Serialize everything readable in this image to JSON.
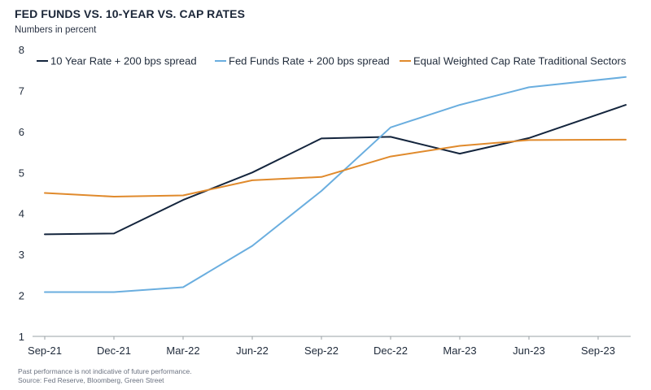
{
  "chart_data": {
    "type": "line",
    "title": "FED FUNDS VS. 10-YEAR VS. CAP RATES",
    "subtitle": "Numbers in percent",
    "xlabel": "",
    "ylabel": "",
    "ylim": [
      1,
      8
    ],
    "yticks": [
      1,
      2,
      3,
      4,
      5,
      6,
      7,
      8
    ],
    "grid": false,
    "legend_position": "top",
    "categories": [
      "Sep-21",
      "Dec-21",
      "Mar-22",
      "Jun-22",
      "Sep-22",
      "Dec-22",
      "Mar-23",
      "Jun-23",
      "Sep-23"
    ],
    "series": [
      {
        "name": "10 Year Rate + 200 bps spread",
        "color": "#14253d",
        "x": [
          0,
          1,
          2,
          3,
          4,
          5,
          6,
          7,
          8.4
        ],
        "values": [
          3.49,
          3.51,
          4.33,
          5.0,
          5.83,
          5.87,
          5.46,
          5.84,
          6.65
        ]
      },
      {
        "name": "Fed Funds Rate + 200 bps spread",
        "color": "#6aaedf",
        "x": [
          0,
          1,
          2,
          3,
          4,
          5,
          6,
          7,
          8.4
        ],
        "values": [
          2.08,
          2.08,
          2.2,
          3.21,
          4.55,
          6.1,
          6.65,
          7.08,
          7.33
        ]
      },
      {
        "name": "Equal Weighted Cap Rate Traditional Sectors",
        "color": "#e08a2c",
        "x": [
          0,
          1,
          2,
          3,
          4,
          5,
          6,
          7,
          8.4
        ],
        "values": [
          4.5,
          4.41,
          4.44,
          4.81,
          4.89,
          5.39,
          5.65,
          5.79,
          5.8
        ]
      }
    ]
  },
  "footnotes": {
    "disclaimer": "Past performance is not indicative of future performance.",
    "source": "Source: Fed Reserve, Bloomberg, Green Street"
  }
}
